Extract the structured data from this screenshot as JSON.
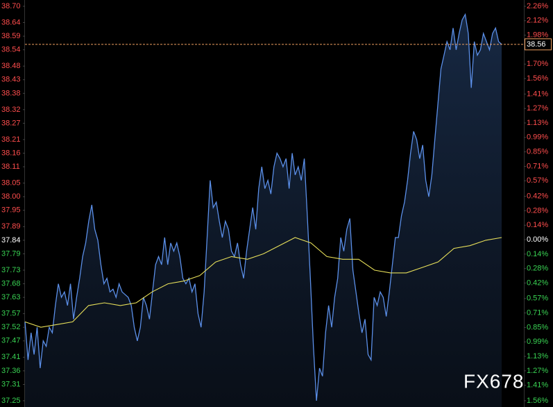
{
  "chart_data": {
    "type": "line",
    "series": [
      {
        "name": "price",
        "color": "#5b8fe8",
        "values": [
          37.54,
          37.4,
          37.5,
          37.42,
          37.52,
          37.37,
          37.47,
          37.45,
          37.52,
          37.5,
          37.6,
          37.68,
          37.63,
          37.65,
          37.6,
          37.68,
          37.55,
          37.63,
          37.7,
          37.78,
          37.83,
          37.91,
          37.97,
          37.88,
          37.84,
          37.75,
          37.68,
          37.7,
          37.65,
          37.66,
          37.63,
          37.68,
          37.65,
          37.64,
          37.63,
          37.6,
          37.52,
          37.47,
          37.52,
          37.63,
          37.6,
          37.55,
          37.65,
          37.75,
          37.78,
          37.75,
          37.85,
          37.75,
          37.83,
          37.8,
          37.83,
          37.78,
          37.7,
          37.68,
          37.7,
          37.65,
          37.68,
          37.57,
          37.52,
          37.65,
          37.85,
          38.06,
          37.96,
          37.98,
          37.91,
          37.85,
          37.91,
          37.88,
          37.8,
          37.78,
          37.83,
          37.75,
          37.7,
          37.8,
          37.88,
          37.96,
          37.88,
          38.03,
          38.11,
          38.03,
          38.06,
          38.01,
          38.11,
          38.16,
          38.14,
          38.11,
          38.14,
          38.03,
          38.16,
          38.08,
          38.11,
          38.06,
          38.14,
          37.93,
          37.7,
          37.45,
          37.25,
          37.37,
          37.34,
          37.5,
          37.6,
          37.52,
          37.63,
          37.7,
          37.85,
          37.8,
          37.88,
          37.92,
          37.73,
          37.65,
          37.57,
          37.5,
          37.55,
          37.42,
          37.4,
          37.63,
          37.6,
          37.65,
          37.63,
          37.56,
          37.65,
          37.75,
          37.85,
          37.85,
          37.93,
          37.98,
          38.06,
          38.16,
          38.24,
          38.21,
          38.14,
          38.19,
          38.06,
          38.0,
          38.08,
          38.21,
          38.34,
          38.47,
          38.52,
          38.57,
          38.54,
          38.62,
          38.54,
          38.6,
          38.65,
          38.67,
          38.6,
          38.4,
          38.57,
          38.52,
          38.54,
          38.6,
          38.57,
          38.54,
          38.6,
          38.62,
          38.57,
          38.56
        ]
      },
      {
        "name": "average",
        "color": "#e8e05a",
        "values": [
          37.54,
          37.52,
          37.53,
          37.54,
          37.6,
          37.61,
          37.6,
          37.61,
          37.65,
          37.68,
          37.69,
          37.71,
          37.76,
          37.78,
          37.77,
          37.79,
          37.82,
          37.85,
          37.83,
          37.78,
          37.77,
          37.77,
          37.73,
          37.72,
          37.72,
          37.74,
          37.76,
          37.81,
          37.82,
          37.84,
          37.85
        ]
      }
    ],
    "ylim": [
      37.25,
      38.7
    ],
    "yticks": [
      {
        "value": 38.7,
        "label": "38.70"
      },
      38.64,
      38.59,
      38.54,
      38.48,
      38.43,
      38.38,
      38.32,
      38.27,
      38.21,
      38.16,
      38.11,
      38.05,
      {
        "value": 38,
        "label": "38.00"
      },
      37.95,
      37.89,
      37.84,
      37.79,
      37.73,
      37.68,
      37.63,
      37.57,
      37.52,
      37.47,
      37.41,
      37.36,
      37.31,
      37.25
    ],
    "y2lim": [
      -1.56,
      2.26
    ],
    "y2ticks": [
      {
        "value": 2.26,
        "label": "2.26%"
      },
      {
        "value": 2.12,
        "label": "2.12%"
      },
      {
        "value": 1.98,
        "label": "1.98%"
      },
      {
        "value": 1.7,
        "label": "1.70%"
      },
      {
        "value": 1.56,
        "label": "1.56%"
      },
      {
        "value": 1.41,
        "label": "1.41%"
      },
      {
        "value": 1.27,
        "label": "1.27%"
      },
      {
        "value": 1.13,
        "label": "1.13%"
      },
      {
        "value": 0.99,
        "label": "0.99%"
      },
      {
        "value": 0.85,
        "label": "0.85%"
      },
      {
        "value": 0.71,
        "label": "0.71%"
      },
      {
        "value": 0.57,
        "label": "0.57%"
      },
      {
        "value": 0.42,
        "label": "0.42%"
      },
      {
        "value": 0.28,
        "label": "0.28%"
      },
      {
        "value": 0.14,
        "label": "0.14%"
      },
      {
        "value": 0,
        "label": "0.00%"
      },
      {
        "value": -0.14,
        "label": "0.14%"
      },
      {
        "value": -0.28,
        "label": "0.28%"
      },
      {
        "value": -0.42,
        "label": "0.42%"
      },
      {
        "value": -0.57,
        "label": "0.57%"
      },
      {
        "value": -0.71,
        "label": "0.71%"
      },
      {
        "value": -0.85,
        "label": "0.85%"
      },
      {
        "value": -0.99,
        "label": "0.99%"
      },
      {
        "value": -1.13,
        "label": "1.13%"
      },
      {
        "value": -1.27,
        "label": "1.27%"
      },
      {
        "value": -1.41,
        "label": "1.41%"
      },
      {
        "value": -1.56,
        "label": "1.56%"
      }
    ],
    "last_price": 38.56,
    "last_price_color": "#f0a060",
    "up_color": "#ff4d4d",
    "down_color": "#39d353",
    "flat_color": "#ffffff",
    "watermark": "FX678",
    "grid": false
  }
}
